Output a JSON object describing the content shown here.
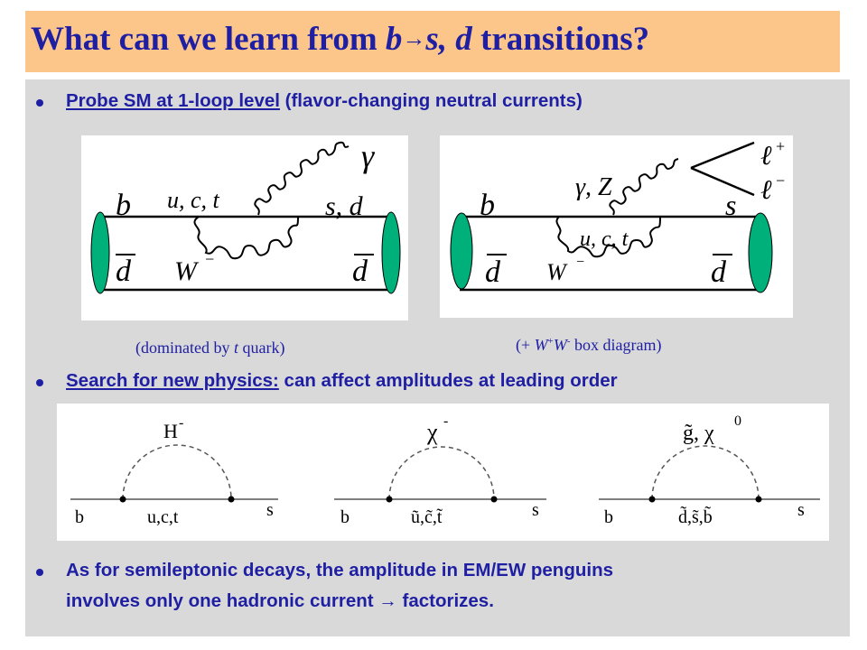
{
  "title": {
    "part1": "What can we learn from ",
    "b": "b",
    "arrow": "→",
    "part2": "s, d",
    "part3": " transitions?"
  },
  "bullets": [
    {
      "link": "Probe SM at 1-loop level",
      "rest": " (flavor-changing neutral currents)"
    },
    {
      "link": "Search for new physics:",
      "rest": " can affect amplitudes at leading order"
    },
    {
      "line1": "As for semileptonic decays, the amplitude in EM/EW penguins",
      "line2a": "involves only one hadronic current ",
      "arrow": "→",
      "line2b": " factorizes."
    }
  ],
  "diagram1": {
    "b": "b",
    "dbar_left": "d",
    "dbar_right": "d",
    "quarks": "u, c, t",
    "W": "W",
    "W_sup": "−",
    "photon": "γ",
    "sd": "s, d"
  },
  "diagram2": {
    "b": "b",
    "dbar_left": "d",
    "dbar_right": "d",
    "quarks": "u, c, t",
    "W": "W",
    "W_sup": "−",
    "gz": "γ, Z",
    "s": "s",
    "lplus": "ℓ",
    "lplus_sup": "+",
    "lminus": "ℓ",
    "lminus_sup": "−"
  },
  "caption1": {
    "pre": "(dominated by ",
    "t": "t",
    "post": " quark)"
  },
  "caption2": {
    "pre": "(+ ",
    "W1": "W",
    "s1": "+",
    "W2": "W",
    "s2": "-",
    "post": " box diagram)"
  },
  "loops": [
    {
      "top": "H",
      "top_sup": "-",
      "left": "b",
      "mid": "u,c,t",
      "right": "s"
    },
    {
      "top": "χ",
      "top_sup": "-",
      "left": "b",
      "mid": "ũ,c̃,t̃",
      "right": "s"
    },
    {
      "top": "g̃, χ",
      "top_sup": "0",
      "left": "b",
      "mid": "d̃,s̃,b̃",
      "right": "s"
    }
  ],
  "colors": {
    "title_bg": "#fcc68b",
    "text": "#1f1fa3",
    "slide_bg": "#d9d9d9",
    "meson": "#00b07a"
  }
}
